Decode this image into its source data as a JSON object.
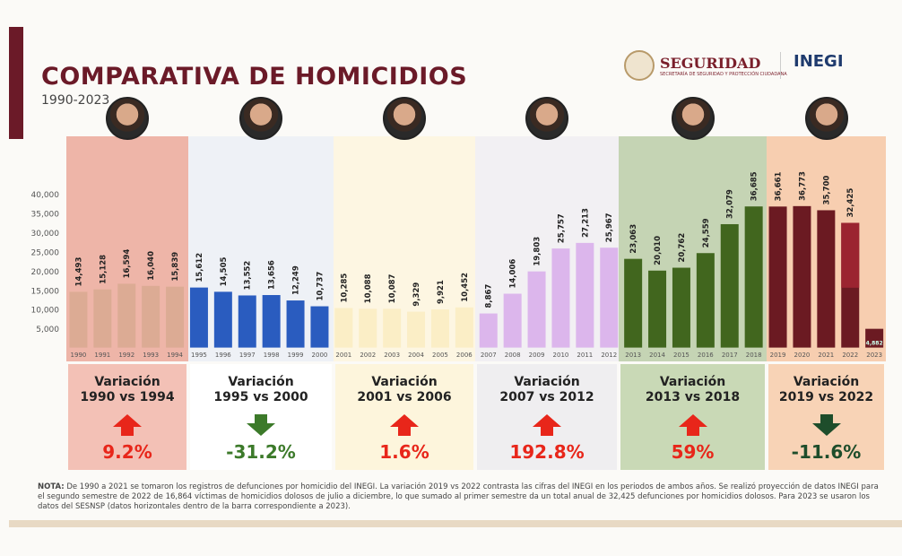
{
  "header": {
    "title": "COMPARATIVA DE HOMICIDIOS",
    "subtitle": "1990-2023"
  },
  "logos": {
    "seguridad": "SEGURIDAD",
    "seguridad_sub": "SECRETARÍA DE SEGURIDAD Y PROTECCIÓN CIUDADANA",
    "inegi": "INEGI"
  },
  "chart_data": {
    "type": "bar",
    "ylim": [
      0,
      40000
    ],
    "yticks": [
      "5,000",
      "10,000",
      "15,000",
      "20,000",
      "25,000",
      "30,000",
      "35,000",
      "40,000"
    ],
    "categories": [
      "1990",
      "1991",
      "1992",
      "1993",
      "1994",
      "1995",
      "1996",
      "1997",
      "1998",
      "1999",
      "2000",
      "2001",
      "2002",
      "2003",
      "2004",
      "2005",
      "2006",
      "2007",
      "2008",
      "2009",
      "2010",
      "2011",
      "2012",
      "2013",
      "2014",
      "2015",
      "2016",
      "2017",
      "2018",
      "2019",
      "2020",
      "2021",
      "2022",
      "2023"
    ],
    "values": [
      14493,
      15128,
      16594,
      16040,
      15839,
      15612,
      14505,
      13552,
      13656,
      12249,
      10737,
      10285,
      10088,
      10087,
      9329,
      9921,
      10452,
      8867,
      14006,
      19803,
      25757,
      27213,
      25967,
      23063,
      20010,
      20762,
      24559,
      32079,
      36685,
      36661,
      36773,
      35700,
      32425,
      4882
    ],
    "labels": [
      "14,493",
      "15,128",
      "16,594",
      "16,040",
      "15,839",
      "15,612",
      "14,505",
      "13,552",
      "13,656",
      "12,249",
      "10,737",
      "10,285",
      "10,088",
      "10,087",
      "9,329",
      "9,921",
      "10,452",
      "8,867",
      "14,006",
      "19,803",
      "25,757",
      "27,213",
      "25,967",
      "23,063",
      "20,010",
      "20,762",
      "24,559",
      "32,079",
      "36,685",
      "36,661",
      "36,773",
      "35,700",
      "32,425",
      "4,882"
    ],
    "periods": [
      {
        "years": [
          "1990",
          "1994"
        ],
        "bar_color": "#dcab94",
        "bg_color": "#eeb5a8"
      },
      {
        "years": [
          "1995",
          "2000"
        ],
        "bar_color": "#2a5cbf",
        "bg_color": "#eef1f6"
      },
      {
        "years": [
          "2001",
          "2006"
        ],
        "bar_color": "#fbeec6",
        "bg_color": "#fdf6e2"
      },
      {
        "years": [
          "2007",
          "2012"
        ],
        "bar_color": "#dcb6ec",
        "bg_color": "#f2f0f3"
      },
      {
        "years": [
          "2013",
          "2018"
        ],
        "bar_color": "#41661e",
        "bg_color": "#c5d4b4"
      },
      {
        "years": [
          "2019",
          "2023"
        ],
        "bar_color": "#6b1a22",
        "bg_color": "#f7ceb0"
      }
    ],
    "split_2022": {
      "first_semester": 15561,
      "second_semester_projection": 16864,
      "projection_color": "#9b2430"
    }
  },
  "variations": [
    {
      "title": "Variación",
      "range": "1990 vs 1994",
      "value": "9.2%",
      "direction": "up",
      "color": "#e8261a",
      "bg": "#f3c1b6"
    },
    {
      "title": "Variación",
      "range": "1995 vs 2000",
      "value": "-31.2%",
      "direction": "down",
      "color": "#3c7a2a",
      "bg": "#ffffff"
    },
    {
      "title": "Variación",
      "range": "2001 vs 2006",
      "value": "1.6%",
      "direction": "up",
      "color": "#e8261a",
      "bg": "#fdf5dc"
    },
    {
      "title": "Variación",
      "range": "2007 vs 2012",
      "value": "192.8%",
      "direction": "up",
      "color": "#e8261a",
      "bg": "#efeef0"
    },
    {
      "title": "Variación",
      "range": "2013 vs 2018",
      "value": "59%",
      "direction": "up",
      "color": "#e8261a",
      "bg": "#c9d9b6"
    },
    {
      "title": "Variación",
      "range": "2019 vs 2022",
      "value": "-11.6%",
      "direction": "down",
      "color": "#1e4d2b",
      "bg": "#f8d3b6"
    }
  ],
  "note": {
    "label": "NOTA:",
    "text": "De 1990 a 2021 se tomaron los registros de defunciones por homicidio del INEGI. La variación 2019 vs 2022 contrasta las cifras del INEGI en los periodos de ambos años. Se realizó proyección de datos INEGI para el segundo semestre de 2022 de 16,864 víctimas de homicidios dolosos de julio a diciembre, lo que sumado al primer semestre da un total anual de 32,425 defunciones por homicidios dolosos. Para 2023 se usaron los datos del SESNSP (datos horizontales dentro de la barra correspondiente a 2023)."
  }
}
